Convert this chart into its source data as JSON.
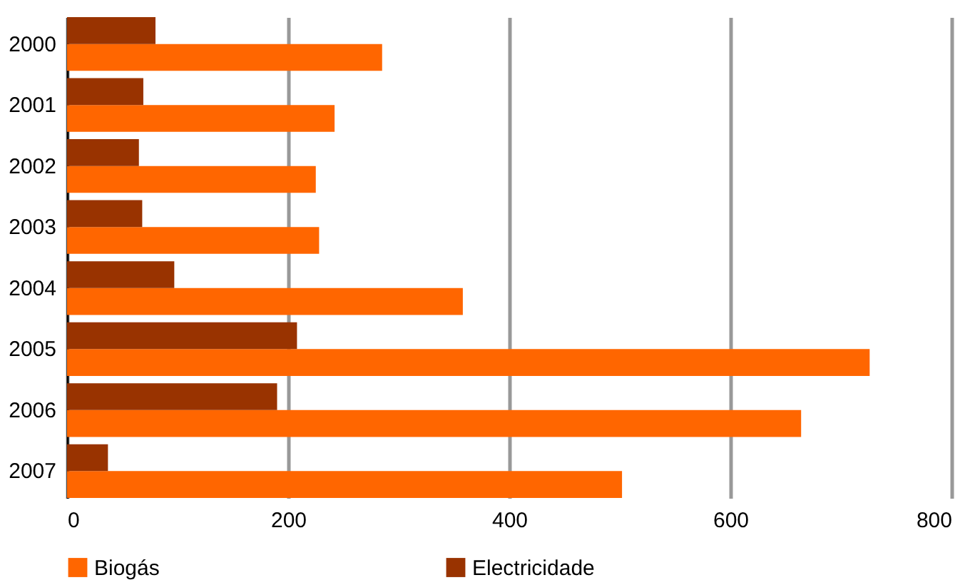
{
  "chart_data": {
    "type": "bar",
    "orientation": "horizontal",
    "categories": [
      "2000",
      "2001",
      "2002",
      "2003",
      "2004",
      "2005",
      "2006",
      "2007"
    ],
    "series": [
      {
        "name": "Biogás",
        "color": "#ff6600",
        "values": [
          285,
          242,
          225,
          228,
          358,
          726,
          664,
          502
        ]
      },
      {
        "name": "Electricidade",
        "color": "#993300",
        "values": [
          80,
          69,
          65,
          68,
          97,
          208,
          190,
          37
        ]
      }
    ],
    "xlim": [
      0,
      800
    ],
    "xticks": [
      0,
      200,
      400,
      600,
      800
    ],
    "grid": "x",
    "legend": "bottom"
  }
}
